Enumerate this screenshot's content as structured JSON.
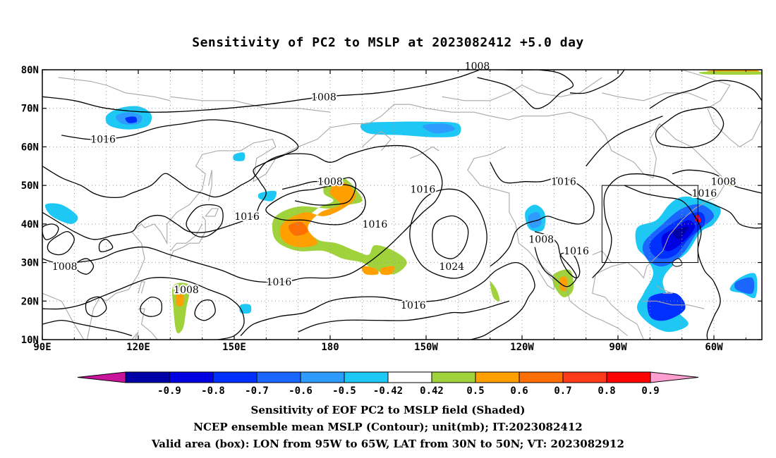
{
  "title": "Sensitivity of PC2 to MSLP at 2023082412 +5.0 day",
  "footer": {
    "line1": "Sensitivity of EOF PC2 to MSLP field (Shaded)",
    "line2": "NCEP ensemble mean MSLP (Contour); unit(mb); IT:2023082412",
    "line3": "Valid area (box): LON from 95W to 65W, LAT from 30N to 50N; VT: 2023082912"
  },
  "map": {
    "lon_labels": [
      "90E",
      "120E",
      "150E",
      "180",
      "150W",
      "120W",
      "90W",
      "60W"
    ],
    "lat_labels": [
      "80N",
      "70N",
      "60N",
      "50N",
      "40N",
      "30N",
      "20N",
      "10N"
    ],
    "lon_range": [
      90,
      315
    ],
    "lat_range": [
      10,
      80
    ],
    "box": {
      "lon_from": "95W",
      "lon_to": "65W",
      "lat_from": "30N",
      "lat_to": "50N"
    },
    "contour_labels": [
      {
        "text": "1008",
        "lon": 178,
        "lat": 73
      },
      {
        "text": "1008",
        "lon": 226,
        "lat": 81
      },
      {
        "text": "1016",
        "lon": 109,
        "lat": 62
      },
      {
        "text": "1008",
        "lon": 180,
        "lat": 51
      },
      {
        "text": "1016",
        "lon": 154,
        "lat": 42
      },
      {
        "text": "1016",
        "lon": 209,
        "lat": 49
      },
      {
        "text": "1016",
        "lon": 253,
        "lat": 51
      },
      {
        "text": "1008",
        "lon": 303,
        "lat": 51
      },
      {
        "text": "1016",
        "lon": 297,
        "lat": 48
      },
      {
        "text": "1016",
        "lon": 194,
        "lat": 40
      },
      {
        "text": "1008",
        "lon": 97,
        "lat": 29
      },
      {
        "text": "1008",
        "lon": 135,
        "lat": 23
      },
      {
        "text": "1016",
        "lon": 164,
        "lat": 25
      },
      {
        "text": "1024",
        "lon": 218,
        "lat": 29
      },
      {
        "text": "1016",
        "lon": 206,
        "lat": 19
      },
      {
        "text": "1008",
        "lon": 246,
        "lat": 36
      },
      {
        "text": "1016",
        "lon": 257,
        "lat": 33
      }
    ]
  },
  "colorbar": {
    "labels": [
      "-0.9",
      "-0.8",
      "-0.7",
      "-0.6",
      "-0.5",
      "-0.42",
      "0.42",
      "0.5",
      "0.6",
      "0.7",
      "0.8",
      "0.9"
    ],
    "colors": [
      "#0000a8",
      "#0000e0",
      "#0030ff",
      "#1a66ff",
      "#2e9cff",
      "#1ec8f5",
      "#ffffff",
      "#a0d23c",
      "#ffa000",
      "#ff6e00",
      "#ff3a1a",
      "#ff0000"
    ],
    "low_end": "#c8149a",
    "high_end": "#ff9ed0"
  }
}
